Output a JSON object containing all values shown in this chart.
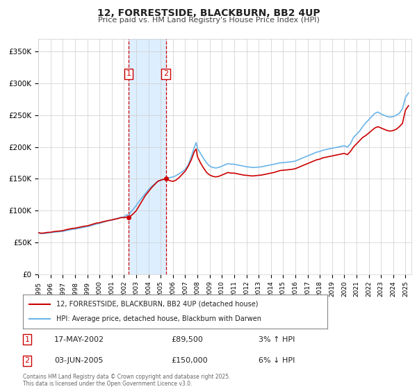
{
  "title": "12, FORRESTSIDE, BLACKBURN, BB2 4UP",
  "subtitle": "Price paid vs. HM Land Registry's House Price Index (HPI)",
  "legend_line1": "12, FORRESTSIDE, BLACKBURN, BB2 4UP (detached house)",
  "legend_line2": "HPI: Average price, detached house, Blackburn with Darwen",
  "sale1_date": "17-MAY-2002",
  "sale1_price": 89500,
  "sale1_label": "3% ↑ HPI",
  "sale1_year": 2002.37,
  "sale2_date": "03-JUN-2005",
  "sale2_price": 150000,
  "sale2_label": "6% ↓ HPI",
  "sale2_year": 2005.42,
  "hpi_color": "#6ab4e8",
  "price_color": "#cc0000",
  "shade_color": "#ddeeff",
  "background_color": "#ffffff",
  "grid_color": "#cccccc",
  "ylim": [
    0,
    370000
  ],
  "xlim_start": 1995,
  "xlim_end": 2025.5,
  "yticks": [
    0,
    50000,
    100000,
    150000,
    200000,
    250000,
    300000,
    350000
  ],
  "ytick_labels": [
    "£0",
    "£50K",
    "£100K",
    "£150K",
    "£200K",
    "£250K",
    "£300K",
    "£350K"
  ],
  "xticks": [
    1995,
    1996,
    1997,
    1998,
    1999,
    2000,
    2001,
    2002,
    2003,
    2004,
    2005,
    2006,
    2007,
    2008,
    2009,
    2010,
    2011,
    2012,
    2013,
    2014,
    2015,
    2016,
    2017,
    2018,
    2019,
    2020,
    2021,
    2022,
    2023,
    2024,
    2025
  ],
  "footer_text": "Contains HM Land Registry data © Crown copyright and database right 2025.\nThis data is licensed under the Open Government Licence v3.0.",
  "hpi_data": [
    [
      1995.0,
      65000
    ],
    [
      1995.1,
      64500
    ],
    [
      1995.25,
      63800
    ],
    [
      1995.5,
      64200
    ],
    [
      1995.75,
      64800
    ],
    [
      1996.0,
      65500
    ],
    [
      1996.25,
      66000
    ],
    [
      1996.5,
      66500
    ],
    [
      1996.75,
      67000
    ],
    [
      1997.0,
      67500
    ],
    [
      1997.25,
      68500
    ],
    [
      1997.5,
      69500
    ],
    [
      1997.75,
      70500
    ],
    [
      1998.0,
      71000
    ],
    [
      1998.25,
      72000
    ],
    [
      1998.5,
      73000
    ],
    [
      1998.75,
      74000
    ],
    [
      1999.0,
      75000
    ],
    [
      1999.25,
      76000
    ],
    [
      1999.5,
      77500
    ],
    [
      1999.75,
      79000
    ],
    [
      2000.0,
      80000
    ],
    [
      2000.25,
      81500
    ],
    [
      2000.5,
      83000
    ],
    [
      2000.75,
      84500
    ],
    [
      2001.0,
      85000
    ],
    [
      2001.25,
      87000
    ],
    [
      2001.5,
      88000
    ],
    [
      2001.75,
      89500
    ],
    [
      2002.0,
      90000
    ],
    [
      2002.25,
      94000
    ],
    [
      2002.37,
      89500
    ],
    [
      2002.5,
      97000
    ],
    [
      2002.75,
      102000
    ],
    [
      2003.0,
      108000
    ],
    [
      2003.25,
      115000
    ],
    [
      2003.5,
      121000
    ],
    [
      2003.75,
      127000
    ],
    [
      2004.0,
      133000
    ],
    [
      2004.25,
      138000
    ],
    [
      2004.5,
      142000
    ],
    [
      2004.75,
      146000
    ],
    [
      2005.0,
      148000
    ],
    [
      2005.25,
      149000
    ],
    [
      2005.42,
      150000
    ],
    [
      2005.5,
      151000
    ],
    [
      2005.75,
      152000
    ],
    [
      2006.0,
      153000
    ],
    [
      2006.25,
      155000
    ],
    [
      2006.5,
      158000
    ],
    [
      2006.75,
      161000
    ],
    [
      2007.0,
      165000
    ],
    [
      2007.25,
      172000
    ],
    [
      2007.5,
      185000
    ],
    [
      2007.75,
      200000
    ],
    [
      2007.9,
      207000
    ],
    [
      2008.0,
      198000
    ],
    [
      2008.25,
      190000
    ],
    [
      2008.5,
      182000
    ],
    [
      2008.75,
      175000
    ],
    [
      2009.0,
      170000
    ],
    [
      2009.25,
      168000
    ],
    [
      2009.5,
      167000
    ],
    [
      2009.75,
      168000
    ],
    [
      2010.0,
      170000
    ],
    [
      2010.25,
      172000
    ],
    [
      2010.5,
      174000
    ],
    [
      2010.75,
      173000
    ],
    [
      2011.0,
      173000
    ],
    [
      2011.25,
      172000
    ],
    [
      2011.5,
      171000
    ],
    [
      2011.75,
      170000
    ],
    [
      2012.0,
      169000
    ],
    [
      2012.25,
      168500
    ],
    [
      2012.5,
      168000
    ],
    [
      2012.75,
      168000
    ],
    [
      2013.0,
      168500
    ],
    [
      2013.25,
      169000
    ],
    [
      2013.5,
      170000
    ],
    [
      2013.75,
      171000
    ],
    [
      2014.0,
      172000
    ],
    [
      2014.25,
      173000
    ],
    [
      2014.5,
      174000
    ],
    [
      2014.75,
      175000
    ],
    [
      2015.0,
      175500
    ],
    [
      2015.25,
      176000
    ],
    [
      2015.5,
      176500
    ],
    [
      2015.75,
      177000
    ],
    [
      2016.0,
      178000
    ],
    [
      2016.25,
      180000
    ],
    [
      2016.5,
      182000
    ],
    [
      2016.75,
      184000
    ],
    [
      2017.0,
      186000
    ],
    [
      2017.25,
      188000
    ],
    [
      2017.5,
      190000
    ],
    [
      2017.75,
      192000
    ],
    [
      2018.0,
      193000
    ],
    [
      2018.25,
      195000
    ],
    [
      2018.5,
      196000
    ],
    [
      2018.75,
      197000
    ],
    [
      2019.0,
      198000
    ],
    [
      2019.25,
      199000
    ],
    [
      2019.5,
      200000
    ],
    [
      2019.75,
      201000
    ],
    [
      2020.0,
      202000
    ],
    [
      2020.25,
      200000
    ],
    [
      2020.5,
      205000
    ],
    [
      2020.75,
      215000
    ],
    [
      2021.0,
      220000
    ],
    [
      2021.25,
      225000
    ],
    [
      2021.5,
      232000
    ],
    [
      2021.75,
      238000
    ],
    [
      2022.0,
      243000
    ],
    [
      2022.25,
      248000
    ],
    [
      2022.5,
      253000
    ],
    [
      2022.75,
      255000
    ],
    [
      2023.0,
      252000
    ],
    [
      2023.25,
      250000
    ],
    [
      2023.5,
      248000
    ],
    [
      2023.75,
      247000
    ],
    [
      2024.0,
      248000
    ],
    [
      2024.25,
      250000
    ],
    [
      2024.5,
      253000
    ],
    [
      2024.75,
      260000
    ],
    [
      2025.0,
      278000
    ],
    [
      2025.25,
      285000
    ]
  ],
  "price_data": [
    [
      1995.0,
      65500
    ],
    [
      1995.1,
      65000
    ],
    [
      1995.25,
      64500
    ],
    [
      1995.5,
      65000
    ],
    [
      1995.75,
      65800
    ],
    [
      1996.0,
      66000
    ],
    [
      1996.25,
      67000
    ],
    [
      1996.5,
      67500
    ],
    [
      1996.75,
      68000
    ],
    [
      1997.0,
      68500
    ],
    [
      1997.25,
      70000
    ],
    [
      1997.5,
      71000
    ],
    [
      1997.75,
      72000
    ],
    [
      1998.0,
      72500
    ],
    [
      1998.25,
      73500
    ],
    [
      1998.5,
      74500
    ],
    [
      1998.75,
      75500
    ],
    [
      1999.0,
      76000
    ],
    [
      1999.25,
      77500
    ],
    [
      1999.5,
      79000
    ],
    [
      1999.75,
      80500
    ],
    [
      2000.0,
      81000
    ],
    [
      2000.25,
      82500
    ],
    [
      2000.5,
      83500
    ],
    [
      2000.75,
      84500
    ],
    [
      2001.0,
      85500
    ],
    [
      2001.25,
      86500
    ],
    [
      2001.5,
      87500
    ],
    [
      2001.75,
      89000
    ],
    [
      2002.0,
      89000
    ],
    [
      2002.25,
      90000
    ],
    [
      2002.37,
      89500
    ],
    [
      2002.5,
      91000
    ],
    [
      2002.75,
      95000
    ],
    [
      2003.0,
      100000
    ],
    [
      2003.25,
      108000
    ],
    [
      2003.5,
      116000
    ],
    [
      2003.75,
      124000
    ],
    [
      2004.0,
      130000
    ],
    [
      2004.25,
      136000
    ],
    [
      2004.5,
      141000
    ],
    [
      2004.75,
      146000
    ],
    [
      2005.0,
      148000
    ],
    [
      2005.25,
      149500
    ],
    [
      2005.42,
      150000
    ],
    [
      2005.5,
      149000
    ],
    [
      2005.75,
      147000
    ],
    [
      2006.0,
      146000
    ],
    [
      2006.25,
      148000
    ],
    [
      2006.5,
      152000
    ],
    [
      2006.75,
      157000
    ],
    [
      2007.0,
      162000
    ],
    [
      2007.25,
      170000
    ],
    [
      2007.5,
      180000
    ],
    [
      2007.75,
      193000
    ],
    [
      2007.9,
      197000
    ],
    [
      2008.0,
      185000
    ],
    [
      2008.25,
      175000
    ],
    [
      2008.5,
      167000
    ],
    [
      2008.75,
      160000
    ],
    [
      2009.0,
      156000
    ],
    [
      2009.25,
      154000
    ],
    [
      2009.5,
      153000
    ],
    [
      2009.75,
      154000
    ],
    [
      2010.0,
      156000
    ],
    [
      2010.25,
      158000
    ],
    [
      2010.5,
      160000
    ],
    [
      2010.75,
      159000
    ],
    [
      2011.0,
      159000
    ],
    [
      2011.25,
      158000
    ],
    [
      2011.5,
      157000
    ],
    [
      2011.75,
      156000
    ],
    [
      2012.0,
      155500
    ],
    [
      2012.25,
      155000
    ],
    [
      2012.5,
      154500
    ],
    [
      2012.75,
      155000
    ],
    [
      2013.0,
      155500
    ],
    [
      2013.25,
      156000
    ],
    [
      2013.5,
      157000
    ],
    [
      2013.75,
      158000
    ],
    [
      2014.0,
      159000
    ],
    [
      2014.25,
      160000
    ],
    [
      2014.5,
      161500
    ],
    [
      2014.75,
      163000
    ],
    [
      2015.0,
      163500
    ],
    [
      2015.25,
      164000
    ],
    [
      2015.5,
      164500
    ],
    [
      2015.75,
      165000
    ],
    [
      2016.0,
      166000
    ],
    [
      2016.25,
      168000
    ],
    [
      2016.5,
      170000
    ],
    [
      2016.75,
      172000
    ],
    [
      2017.0,
      174000
    ],
    [
      2017.25,
      176000
    ],
    [
      2017.5,
      178000
    ],
    [
      2017.75,
      180000
    ],
    [
      2018.0,
      181000
    ],
    [
      2018.25,
      183000
    ],
    [
      2018.5,
      184000
    ],
    [
      2018.75,
      185000
    ],
    [
      2019.0,
      186000
    ],
    [
      2019.25,
      187000
    ],
    [
      2019.5,
      188000
    ],
    [
      2019.75,
      189000
    ],
    [
      2020.0,
      190000
    ],
    [
      2020.25,
      188000
    ],
    [
      2020.5,
      193000
    ],
    [
      2020.75,
      200000
    ],
    [
      2021.0,
      205000
    ],
    [
      2021.25,
      210000
    ],
    [
      2021.5,
      215000
    ],
    [
      2021.75,
      218000
    ],
    [
      2022.0,
      222000
    ],
    [
      2022.25,
      226000
    ],
    [
      2022.5,
      230000
    ],
    [
      2022.75,
      232000
    ],
    [
      2023.0,
      230000
    ],
    [
      2023.25,
      228000
    ],
    [
      2023.5,
      226000
    ],
    [
      2023.75,
      225000
    ],
    [
      2024.0,
      226000
    ],
    [
      2024.25,
      228000
    ],
    [
      2024.5,
      232000
    ],
    [
      2024.75,
      237000
    ],
    [
      2025.0,
      258000
    ],
    [
      2025.25,
      265000
    ]
  ]
}
